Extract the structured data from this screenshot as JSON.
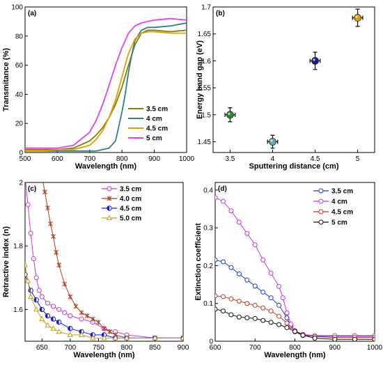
{
  "chart_data": [
    {
      "panel": "(a)",
      "type": "line",
      "xlabel": "Wavelength (nm)",
      "ylabel": "Transmitance (%)",
      "xlim": [
        500,
        1000
      ],
      "ylim": [
        0,
        100
      ],
      "xticks": [
        500,
        600,
        700,
        800,
        900,
        1000
      ],
      "yticks": [
        0,
        20,
        40,
        60,
        80,
        100
      ],
      "legend_position": "bottom-right",
      "grid": false,
      "series": [
        {
          "name": "3.5 cm",
          "color": "#808000",
          "x": [
            500,
            550,
            600,
            650,
            700,
            720,
            740,
            760,
            780,
            800,
            820,
            840,
            860,
            880,
            900,
            950,
            1000
          ],
          "y": [
            2,
            2,
            2,
            3,
            8,
            12,
            17,
            24,
            33,
            45,
            60,
            74,
            82,
            84,
            84,
            83,
            84
          ]
        },
        {
          "name": "4 cm",
          "color": "#2E7D8C",
          "x": [
            500,
            550,
            600,
            650,
            700,
            720,
            740,
            760,
            780,
            790,
            800,
            810,
            820,
            830,
            840,
            860,
            880,
            900,
            950,
            1000
          ],
          "y": [
            1,
            1,
            1,
            1,
            1,
            1,
            2,
            3,
            8,
            18,
            28,
            40,
            55,
            67,
            77,
            84,
            86,
            86,
            87,
            89
          ]
        },
        {
          "name": "4.5 cm",
          "color": "#E69B00",
          "x": [
            500,
            550,
            600,
            650,
            700,
            720,
            740,
            760,
            780,
            800,
            820,
            840,
            860,
            880,
            900,
            950,
            1000
          ],
          "y": [
            1,
            1,
            2,
            2,
            5,
            9,
            15,
            24,
            36,
            52,
            68,
            78,
            82,
            83,
            83,
            82,
            82
          ]
        },
        {
          "name": "5 cm",
          "color": "#E040FB",
          "x": [
            500,
            550,
            600,
            650,
            700,
            720,
            740,
            760,
            780,
            800,
            820,
            840,
            860,
            880,
            900,
            950,
            1000
          ],
          "y": [
            3,
            3,
            3,
            5,
            14,
            22,
            33,
            46,
            60,
            72,
            82,
            87,
            89,
            90,
            91,
            92,
            91
          ]
        }
      ]
    },
    {
      "panel": "(b)",
      "type": "scatter",
      "xlabel": "Sputtering distance (cm)",
      "ylabel": "Energy band gap (eV)",
      "xlim": [
        3.3,
        5.2
      ],
      "ylim": [
        1.43,
        1.7
      ],
      "xticks": [
        3.5,
        4.0,
        4.5,
        5.0
      ],
      "yticks": [
        1.45,
        1.5,
        1.55,
        1.6,
        1.65,
        1.7
      ],
      "grid": false,
      "points": [
        {
          "x": 3.5,
          "y": 1.5,
          "xerr": 0.06,
          "yerr": 0.013,
          "color": "#2E8B2E"
        },
        {
          "x": 4.0,
          "y": 1.45,
          "xerr": 0.06,
          "yerr": 0.012,
          "color": "#5FA8B0"
        },
        {
          "x": 4.5,
          "y": 1.6,
          "xerr": 0.06,
          "yerr": 0.016,
          "color": "#1A1A8C"
        },
        {
          "x": 5.0,
          "y": 1.68,
          "xerr": 0.06,
          "yerr": 0.016,
          "color": "#E69B00"
        }
      ]
    },
    {
      "panel": "(c)",
      "type": "line",
      "xlabel": "Wavelength (nm)",
      "ylabel": "Retractive index (n)",
      "xlim": [
        620,
        900
      ],
      "ylim": [
        1.5,
        2.0
      ],
      "xticks": [
        650,
        700,
        750,
        800,
        850,
        900
      ],
      "yticks": [
        1.6,
        1.8,
        2.0
      ],
      "legend_position": "top-right",
      "grid": false,
      "series": [
        {
          "name": "3.5 cm",
          "color": "#CC33DD",
          "marker": "circle",
          "x": [
            620,
            625,
            630,
            635,
            640,
            645,
            650,
            660,
            670,
            680,
            690,
            700,
            720,
            740,
            760,
            780,
            800,
            850,
            900
          ],
          "y": [
            2.02,
            1.93,
            1.84,
            1.76,
            1.7,
            1.66,
            1.64,
            1.62,
            1.61,
            1.6,
            1.59,
            1.58,
            1.57,
            1.56,
            1.54,
            1.53,
            1.52,
            1.51,
            1.51
          ]
        },
        {
          "name": "4.0 cm",
          "color": "#B03A1A",
          "marker": "star",
          "x": [
            650,
            655,
            660,
            665,
            670,
            675,
            680,
            690,
            700,
            710,
            720,
            730,
            740,
            750,
            760,
            770,
            780,
            800,
            850,
            900
          ],
          "y": [
            2.02,
            1.97,
            1.92,
            1.87,
            1.83,
            1.78,
            1.74,
            1.68,
            1.64,
            1.61,
            1.59,
            1.58,
            1.57,
            1.56,
            1.54,
            1.53,
            1.52,
            1.51,
            1.51,
            1.51
          ]
        },
        {
          "name": "4.5 cm",
          "color": "#1A1AE0",
          "marker": "half-circle",
          "x": [
            620,
            630,
            640,
            650,
            660,
            670,
            680,
            700,
            720,
            740,
            760,
            780,
            800,
            850,
            900
          ],
          "y": [
            1.71,
            1.66,
            1.63,
            1.6,
            1.58,
            1.57,
            1.56,
            1.54,
            1.53,
            1.52,
            1.52,
            1.51,
            1.51,
            1.51,
            1.51
          ]
        },
        {
          "name": "5.0 cm",
          "color": "#C8A000",
          "marker": "triangle",
          "x": [
            620,
            625,
            630,
            640,
            650,
            660,
            670,
            680,
            700,
            720,
            740,
            760,
            780,
            800,
            850,
            900
          ],
          "y": [
            1.74,
            1.69,
            1.64,
            1.6,
            1.57,
            1.55,
            1.54,
            1.53,
            1.52,
            1.52,
            1.51,
            1.51,
            1.51,
            1.51,
            1.51,
            1.51
          ]
        }
      ]
    },
    {
      "panel": "(d)",
      "type": "line",
      "xlabel": "Wavelength (nm)",
      "ylabel": "Extinction coefficient",
      "xlim": [
        600,
        1000
      ],
      "ylim": [
        0,
        0.42
      ],
      "xticks": [
        600,
        700,
        800,
        900,
        1000
      ],
      "yticks": [
        0,
        0.1,
        0.2,
        0.3,
        0.4
      ],
      "legend_position": "top-right",
      "grid": false,
      "series": [
        {
          "name": "3.5 cm",
          "color": "#1A3AE0",
          "marker": "circle",
          "x": [
            600,
            620,
            640,
            660,
            680,
            700,
            720,
            740,
            760,
            780,
            790,
            800,
            820,
            850,
            900,
            950,
            1000
          ],
          "y": [
            0.215,
            0.21,
            0.195,
            0.178,
            0.162,
            0.146,
            0.13,
            0.115,
            0.095,
            0.062,
            0.04,
            0.025,
            0.015,
            0.013,
            0.013,
            0.013,
            0.013
          ]
        },
        {
          "name": "4 cm",
          "color": "#CC33DD",
          "marker": "circle",
          "x": [
            600,
            620,
            640,
            660,
            680,
            700,
            720,
            740,
            760,
            770,
            780,
            790,
            800,
            820,
            850,
            900,
            950,
            1000
          ],
          "y": [
            0.38,
            0.37,
            0.345,
            0.315,
            0.285,
            0.255,
            0.215,
            0.18,
            0.145,
            0.115,
            0.075,
            0.045,
            0.025,
            0.018,
            0.015,
            0.015,
            0.015,
            0.015
          ]
        },
        {
          "name": "4.5 cm",
          "color": "#CC3322",
          "marker": "circle",
          "x": [
            600,
            620,
            640,
            660,
            680,
            700,
            720,
            740,
            760,
            780,
            800,
            820,
            850,
            900,
            950,
            1000
          ],
          "y": [
            0.12,
            0.118,
            0.112,
            0.106,
            0.1,
            0.095,
            0.088,
            0.08,
            0.066,
            0.048,
            0.028,
            0.018,
            0.012,
            0.01,
            0.01,
            0.01
          ]
        },
        {
          "name": "5 cm",
          "color": "#111111",
          "marker": "circle",
          "x": [
            600,
            620,
            640,
            660,
            680,
            700,
            720,
            740,
            760,
            780,
            800,
            820,
            850,
            900,
            950,
            1000
          ],
          "y": [
            0.085,
            0.08,
            0.07,
            0.064,
            0.062,
            0.06,
            0.055,
            0.05,
            0.044,
            0.036,
            0.026,
            0.016,
            0.008,
            0.005,
            0.005,
            0.005
          ]
        }
      ]
    }
  ]
}
